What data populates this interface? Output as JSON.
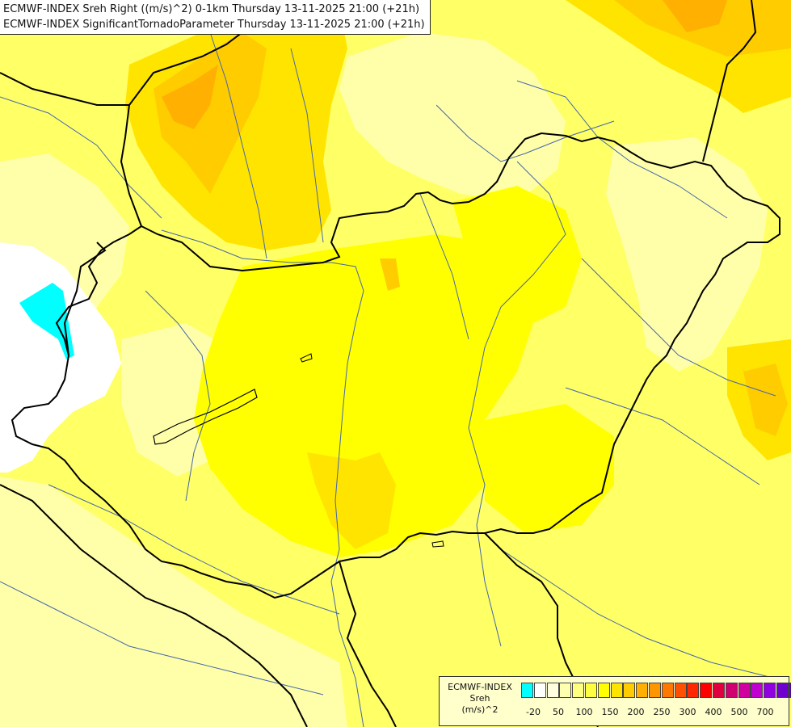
{
  "header": {
    "line1": "ECMWF-INDEX Sreh Right ((m/s)^2) 0-1km Thursday 13-11-2025 21:00 (+21h)",
    "line2": "ECMWF-INDEX SignificantTornadoParameter Thursday 13-11-2025 21:00 (+21h)"
  },
  "legend": {
    "line1": "ECMWF-INDEX",
    "line2": "Sreh",
    "line3": "(m/s)^2",
    "colors": [
      "#00ffff",
      "#ffffff",
      "#ffffe0",
      "#ffffb0",
      "#ffff80",
      "#ffff40",
      "#ffff00",
      "#ffe400",
      "#ffcc00",
      "#ffb000",
      "#ff9600",
      "#ff7800",
      "#ff5000",
      "#ff2800",
      "#ff0000",
      "#e00040",
      "#d00070",
      "#d000a0",
      "#c000d0",
      "#9000e0",
      "#7000d0",
      "#5000b0",
      "#300090",
      "#000080"
    ],
    "ticks": [
      "-20",
      "50",
      "100",
      "150",
      "200",
      "250",
      "300",
      "400",
      "500",
      "700"
    ]
  },
  "map": {
    "colors": {
      "pale_yellow": "#ffffaa",
      "light_yellow": "#ffff66",
      "yellow": "#ffff00",
      "gold": "#ffe400",
      "light_orange": "#ffcc00",
      "orange": "#ffb000",
      "dark_orange": "#ff9600",
      "cyan": "#00ffff",
      "white": "#ffffff",
      "border": "#000000",
      "river": "#4466aa"
    }
  }
}
